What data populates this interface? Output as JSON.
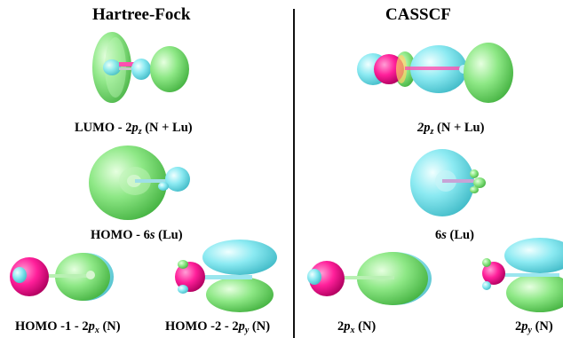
{
  "headings": {
    "left": "Hartree-Fock",
    "right": "CASSCF"
  },
  "captions": {
    "hf_lumo": {
      "prefix": "LUMO - ",
      "num": "2",
      "sym": "p",
      "sub": "z",
      "suffix": " (N + Lu)"
    },
    "hf_homo": {
      "prefix": "HOMO - ",
      "num": "6",
      "sym": "s",
      "sub": "",
      "suffix": " (Lu)"
    },
    "hf_homo1": {
      "prefix": "HOMO -1 - ",
      "num": "2",
      "sym": "p",
      "sub": "x",
      "suffix": " (N)"
    },
    "hf_homo2": {
      "prefix": "HOMO -2 - ",
      "num": "2",
      "sym": "p",
      "sub": "y",
      "suffix": " (N)"
    },
    "cas_2pz": {
      "prefix": "",
      "num": "2",
      "sym": "p",
      "sub": "z",
      "suffix": " (N + Lu)"
    },
    "cas_6s": {
      "prefix": "",
      "num": "6",
      "sym": "s",
      "sub": "",
      "suffix": " (Lu)"
    },
    "cas_2px": {
      "prefix": "",
      "num": "2",
      "sym": "p",
      "sub": "x",
      "suffix": " (N)"
    },
    "cas_2py": {
      "prefix": "",
      "num": "2",
      "sym": "p",
      "sub": "y",
      "suffix": " (N)"
    }
  },
  "colors": {
    "positive_lobe": "#7fe07a",
    "negative_lobe": "#7fe3ee",
    "nitrogen_atom": "#ff1f9a",
    "lutetium_atom": "#c9c9c9",
    "divider": "#111111"
  }
}
